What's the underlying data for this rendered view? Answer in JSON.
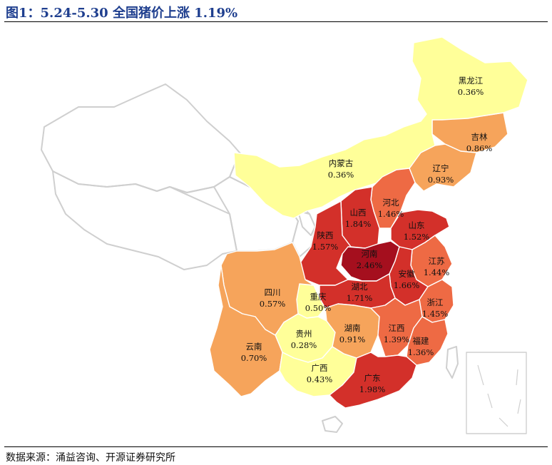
{
  "title": "图1：5.24-5.30 全国猪价上涨 1.19%",
  "source": "数据来源：涌益咨询、开源证券研究所",
  "colors": {
    "title": "#1f3f8f",
    "background_provinces": "#ffffff",
    "background_outline": "#cfcfcf",
    "scale": [
      "#ffff99",
      "#f6a45b",
      "#ee6a44",
      "#d3302a",
      "#a50f1e"
    ]
  },
  "provinces": [
    {
      "key": "heilongjiang",
      "name": "黑龙江",
      "value": "0.36%",
      "color": "#ffff99"
    },
    {
      "key": "jilin",
      "name": "吉林",
      "value": "0.86%",
      "color": "#f6a45b"
    },
    {
      "key": "liaoning",
      "name": "辽宁",
      "value": "0.93%",
      "color": "#f6a45b"
    },
    {
      "key": "neimenggu",
      "name": "内蒙古",
      "value": "0.36%",
      "color": "#ffff99"
    },
    {
      "key": "hebei",
      "name": "河北",
      "value": "1.46%",
      "color": "#ee6a44"
    },
    {
      "key": "shanxi",
      "name": "山西",
      "value": "1.84%",
      "color": "#d3302a"
    },
    {
      "key": "shandong",
      "name": "山东",
      "value": "1.52%",
      "color": "#d3302a"
    },
    {
      "key": "shaanxi",
      "name": "陕西",
      "value": "1.57%",
      "color": "#d3302a"
    },
    {
      "key": "henan",
      "name": "河南",
      "value": "2.46%",
      "color": "#a50f1e"
    },
    {
      "key": "jiangsu",
      "name": "江苏",
      "value": "1.44%",
      "color": "#ee6a44"
    },
    {
      "key": "anhui",
      "name": "安徽",
      "value": "1.66%",
      "color": "#d3302a"
    },
    {
      "key": "hubei",
      "name": "湖北",
      "value": "1.71%",
      "color": "#d3302a"
    },
    {
      "key": "zhejiang",
      "name": "浙江",
      "value": "1.45%",
      "color": "#ee6a44"
    },
    {
      "key": "sichuan",
      "name": "四川",
      "value": "0.57%",
      "color": "#f6a45b"
    },
    {
      "key": "chongqing",
      "name": "重庆",
      "value": "0.50%",
      "color": "#ffff99"
    },
    {
      "key": "guizhou",
      "name": "贵州",
      "value": "0.28%",
      "color": "#ffff99"
    },
    {
      "key": "hunan",
      "name": "湖南",
      "value": "0.91%",
      "color": "#f6a45b"
    },
    {
      "key": "jiangxi",
      "name": "江西",
      "value": "1.39%",
      "color": "#ee6a44"
    },
    {
      "key": "fujian",
      "name": "福建",
      "value": "1.36%",
      "color": "#ee6a44"
    },
    {
      "key": "yunnan",
      "name": "云南",
      "value": "0.70%",
      "color": "#f6a45b"
    },
    {
      "key": "guangxi",
      "name": "广西",
      "value": "0.43%",
      "color": "#ffff99"
    },
    {
      "key": "guangdong",
      "name": "广东",
      "value": "1.98%",
      "color": "#d3302a"
    }
  ]
}
